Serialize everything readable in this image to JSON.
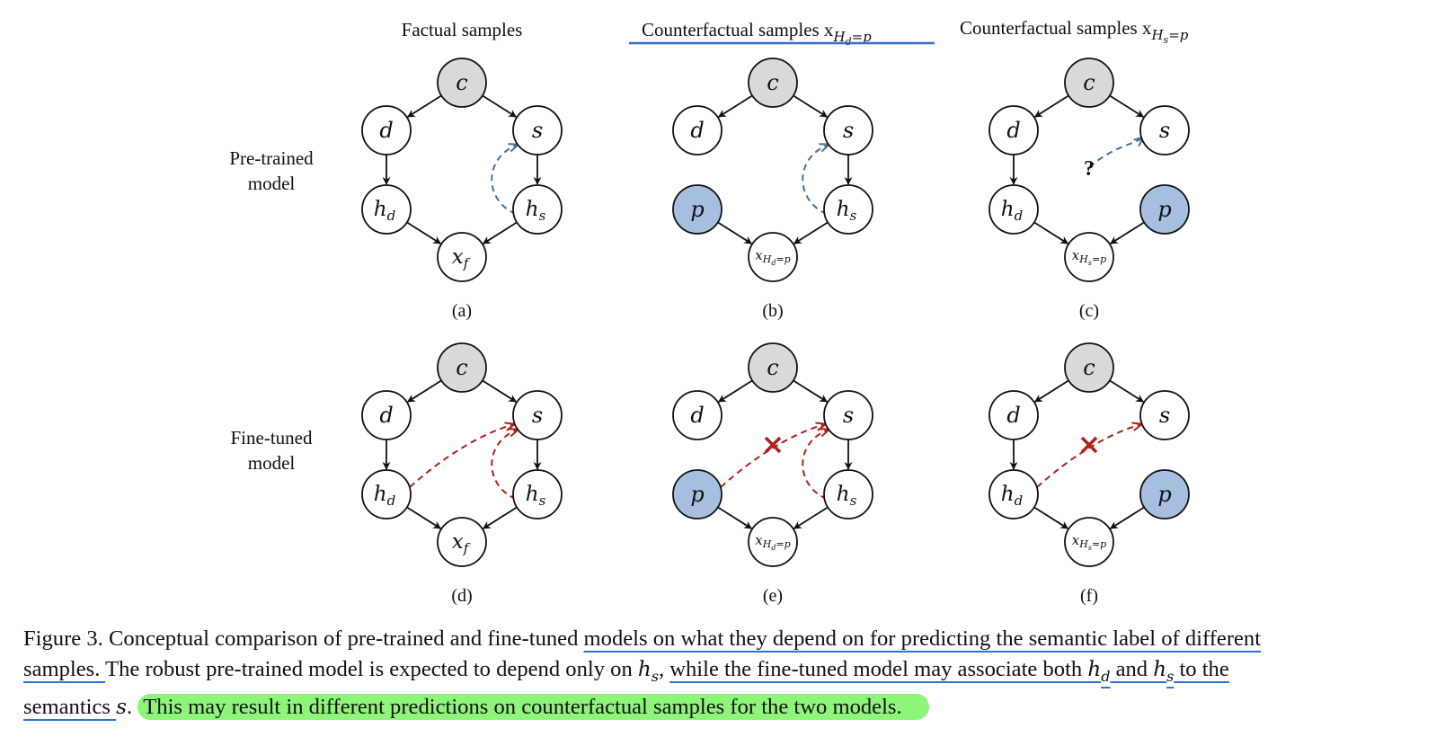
{
  "figure": {
    "column_titles": [
      "Factual samples",
      "Counterfactual samples x",
      "Counterfactual samples x"
    ],
    "column_title_subscripts": [
      "",
      "H",
      "H"
    ],
    "column_title_sub_sub": [
      "",
      "d",
      "s"
    ],
    "column_title_eq": [
      "",
      "=p",
      "=p"
    ],
    "row_labels": [
      [
        "Pre-trained",
        "model"
      ],
      [
        "Fine-tuned",
        "model"
      ]
    ],
    "panel_labels": [
      "(a)",
      "(b)",
      "(c)",
      "(d)",
      "(e)",
      "(f)"
    ],
    "node_labels": {
      "c": "c",
      "d": "d",
      "s": "s",
      "p": "p",
      "hd_base": "h",
      "hd_sub": "d",
      "hs_base": "h",
      "hs_sub": "s",
      "xf_base": "x",
      "xf_sub": "f",
      "xhd_base": "x",
      "xhd_sub": "H",
      "xhd_subsub": "d",
      "xhd_eq": "=p",
      "xhs_base": "x",
      "xhs_sub": "H",
      "xhs_subsub": "s",
      "xhs_eq": "=p"
    },
    "question_mark": "?",
    "colors": {
      "gray_node": "#d9d9d9",
      "blue_node": "#a6bfe0",
      "blue_dash": "#4a6f96",
      "red_dash": "#b0211b",
      "underline": "#2f6fd6",
      "highlight": "#8ef57a"
    }
  },
  "caption": {
    "lines": [
      [
        {
          "t": "Figure 3. Conceptual comparison of pre-trained and fine-tuned ",
          "s": ""
        },
        {
          "t": "models on what they depend on for predicting the semantic label of different",
          "s": "u"
        }
      ],
      [
        {
          "t": "samples. ",
          "s": "u"
        },
        {
          "t": "The robust pre-trained model is expected to depend only on ",
          "s": ""
        },
        {
          "t": "h",
          "s": "m"
        },
        {
          "t": "s",
          "s": "msub"
        },
        {
          "t": ", ",
          "s": ""
        },
        {
          "t": "while the fine-tuned model may associate both ",
          "s": "u"
        },
        {
          "t": "h",
          "s": "m u"
        },
        {
          "t": "d",
          "s": "msub u"
        },
        {
          "t": " and ",
          "s": "u"
        },
        {
          "t": "h",
          "s": "m u"
        },
        {
          "t": "s",
          "s": "msub u"
        },
        {
          "t": " to the",
          "s": "u"
        }
      ],
      [
        {
          "t": "semantics ",
          "s": "u"
        },
        {
          "t": "s",
          "s": "m"
        },
        {
          "t": ". ",
          "s": ""
        },
        {
          "t": "This may result in different predictions on counterfactual samples for the two models.",
          "s": "hl"
        }
      ]
    ]
  }
}
